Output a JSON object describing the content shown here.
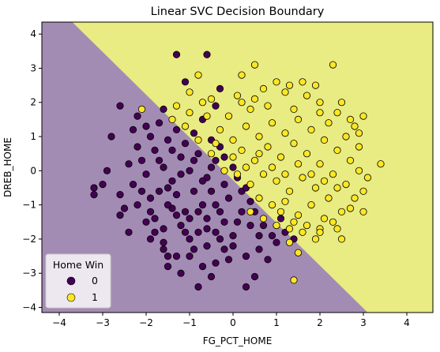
{
  "chart_data": {
    "type": "scatter",
    "title": "Linear SVC Decision Boundary",
    "xlabel": "FG_PCT_HOME",
    "ylabel": "DREB_HOME",
    "xlim": [
      -4.4,
      4.6
    ],
    "ylim": [
      -4.15,
      4.35
    ],
    "xticks": [
      -4,
      -3,
      -2,
      -1,
      0,
      1,
      2,
      3,
      4
    ],
    "yticks": [
      -4,
      -3,
      -2,
      -1,
      0,
      1,
      2,
      3,
      4
    ],
    "grid": false,
    "legend": {
      "title": "Home Win",
      "placement": "lower-left",
      "entries": [
        {
          "label": "0",
          "color": "#440154"
        },
        {
          "label": "1",
          "color": "#fde725"
        }
      ]
    },
    "decision_boundary": {
      "description_line": [
        [
          -3.7,
          4.35
        ],
        [
          3.1,
          -4.15
        ]
      ],
      "region_0_color": "#a38cb3",
      "region_1_color": "#e8ec82"
    },
    "series": [
      {
        "name": "0",
        "color": "#440154",
        "points": [
          [
            -1.3,
            3.4
          ],
          [
            -0.6,
            3.4
          ],
          [
            -1.1,
            2.6
          ],
          [
            -0.4,
            1.9
          ],
          [
            -0.3,
            2.4
          ],
          [
            -1.6,
            1.8
          ],
          [
            -2.2,
            1.6
          ],
          [
            -2.6,
            1.9
          ],
          [
            -2.0,
            1.3
          ],
          [
            -2.8,
            1.0
          ],
          [
            -2.9,
            0.0
          ],
          [
            -3.0,
            -0.4
          ],
          [
            -3.2,
            -0.5
          ],
          [
            -3.2,
            -0.7
          ],
          [
            -2.6,
            -0.7
          ],
          [
            -2.5,
            -1.1
          ],
          [
            -2.6,
            -1.3
          ],
          [
            -2.4,
            -1.8
          ],
          [
            -1.9,
            -2.0
          ],
          [
            -1.6,
            -2.3
          ],
          [
            -1.5,
            -2.5
          ],
          [
            -1.3,
            -2.5
          ],
          [
            -1.5,
            -2.8
          ],
          [
            -1.2,
            -3.0
          ],
          [
            -1.0,
            -2.5
          ],
          [
            -0.7,
            -2.8
          ],
          [
            -0.5,
            -3.1
          ],
          [
            -0.8,
            -3.4
          ],
          [
            -0.4,
            -2.7
          ],
          [
            -0.2,
            -2.3
          ],
          [
            0.3,
            -2.5
          ],
          [
            0.5,
            -3.1
          ],
          [
            0.3,
            -3.4
          ],
          [
            0.8,
            -2.6
          ],
          [
            1.0,
            -2.1
          ],
          [
            1.4,
            -2.0
          ],
          [
            1.1,
            -1.4
          ],
          [
            -2.3,
            -0.4
          ],
          [
            -1.9,
            -0.8
          ],
          [
            -1.8,
            -1.4
          ],
          [
            -1.6,
            -1.7
          ],
          [
            -1.4,
            -1.1
          ],
          [
            -1.2,
            -1.6
          ],
          [
            -1.0,
            -2.0
          ],
          [
            -0.8,
            -1.2
          ],
          [
            -0.6,
            -1.7
          ],
          [
            -0.4,
            -1.0
          ],
          [
            -0.2,
            -1.5
          ],
          [
            0.0,
            -1.9
          ],
          [
            0.2,
            -1.2
          ],
          [
            0.4,
            -1.6
          ],
          [
            0.6,
            -1.9
          ],
          [
            -2.1,
            0.3
          ],
          [
            -1.8,
            0.6
          ],
          [
            -1.6,
            0.1
          ],
          [
            -1.4,
            -0.3
          ],
          [
            -1.2,
            0.4
          ],
          [
            -1.0,
            0.0
          ],
          [
            -0.8,
            0.5
          ],
          [
            -0.6,
            -0.2
          ],
          [
            -0.4,
            0.3
          ],
          [
            -0.2,
            -0.4
          ],
          [
            0.0,
            0.1
          ],
          [
            0.2,
            -0.6
          ],
          [
            0.4,
            -0.9
          ],
          [
            -2.0,
            -0.1
          ],
          [
            -1.7,
            -0.6
          ],
          [
            -1.5,
            -1.0
          ],
          [
            -1.3,
            -0.7
          ],
          [
            -1.1,
            -1.2
          ],
          [
            -0.9,
            -0.6
          ],
          [
            -0.7,
            -1.0
          ],
          [
            -0.5,
            -0.6
          ],
          [
            -0.3,
            -1.2
          ],
          [
            -0.1,
            -0.8
          ],
          [
            0.1,
            -1.5
          ],
          [
            0.3,
            -0.5
          ],
          [
            0.5,
            -1.2
          ],
          [
            0.7,
            -1.6
          ],
          [
            0.9,
            -1.9
          ],
          [
            -1.9,
            1.0
          ],
          [
            -1.7,
            1.4
          ],
          [
            -1.5,
            0.9
          ],
          [
            -1.3,
            1.2
          ],
          [
            -1.1,
            0.8
          ],
          [
            -0.9,
            1.1
          ],
          [
            -0.7,
            1.5
          ],
          [
            -0.5,
            0.9
          ],
          [
            -0.3,
            0.7
          ],
          [
            -2.2,
            0.7
          ],
          [
            -2.4,
            0.2
          ],
          [
            -2.2,
            -1.0
          ],
          [
            -2.0,
            -1.5
          ],
          [
            -1.8,
            -1.8
          ],
          [
            -1.6,
            -2.1
          ],
          [
            -1.0,
            -1.4
          ],
          [
            -0.8,
            -1.8
          ],
          [
            -0.6,
            -2.2
          ],
          [
            -0.3,
            -2.0
          ],
          [
            0.0,
            -2.2
          ],
          [
            -0.1,
            -2.6
          ],
          [
            0.6,
            -2.3
          ],
          [
            1.2,
            -1.8
          ],
          [
            -1.4,
            0.6
          ],
          [
            -1.2,
            -0.1
          ],
          [
            -0.9,
            0.3
          ],
          [
            -0.7,
            -0.3
          ],
          [
            -0.5,
            0.1
          ],
          [
            -0.2,
            0.4
          ],
          [
            0.1,
            -0.2
          ],
          [
            -2.3,
            1.2
          ],
          [
            -2.1,
            -0.6
          ],
          [
            -1.9,
            -1.2
          ],
          [
            -1.7,
            0.3
          ],
          [
            -1.5,
            -0.5
          ],
          [
            -1.3,
            -1.3
          ],
          [
            -1.1,
            -1.8
          ],
          [
            -0.9,
            -2.3
          ],
          [
            -0.6,
            -1.4
          ],
          [
            -0.4,
            -1.8
          ]
        ]
      },
      {
        "name": "1",
        "color": "#fde725",
        "points": [
          [
            0.5,
            3.1
          ],
          [
            2.3,
            3.1
          ],
          [
            -0.8,
            2.8
          ],
          [
            0.2,
            2.8
          ],
          [
            1.6,
            2.6
          ],
          [
            1.9,
            2.5
          ],
          [
            -0.5,
            2.1
          ],
          [
            0.7,
            2.4
          ],
          [
            1.2,
            2.3
          ],
          [
            2.5,
            2.0
          ],
          [
            3.0,
            1.6
          ],
          [
            2.8,
            1.3
          ],
          [
            3.4,
            0.2
          ],
          [
            3.1,
            -0.2
          ],
          [
            3.0,
            -0.6
          ],
          [
            2.7,
            -1.1
          ],
          [
            3.0,
            -1.2
          ],
          [
            2.0,
            -1.7
          ],
          [
            2.4,
            -1.7
          ],
          [
            2.5,
            -2.0
          ],
          [
            1.3,
            -2.1
          ],
          [
            1.5,
            -2.4
          ],
          [
            1.4,
            -3.2
          ],
          [
            -2.1,
            1.8
          ],
          [
            -1.3,
            1.9
          ],
          [
            -1.0,
            2.3
          ],
          [
            0.1,
            2.2
          ],
          [
            0.4,
            1.8
          ],
          [
            0.8,
            1.9
          ],
          [
            1.4,
            1.8
          ],
          [
            2.0,
            1.7
          ],
          [
            2.2,
            1.4
          ],
          [
            2.6,
            1.0
          ],
          [
            2.9,
            0.7
          ],
          [
            0.3,
            1.3
          ],
          [
            0.6,
            1.0
          ],
          [
            0.9,
            1.4
          ],
          [
            1.2,
            1.1
          ],
          [
            1.5,
            1.5
          ],
          [
            1.8,
            1.2
          ],
          [
            2.1,
            0.9
          ],
          [
            2.4,
            0.6
          ],
          [
            2.7,
            0.3
          ],
          [
            2.9,
            0.0
          ],
          [
            0.2,
            0.6
          ],
          [
            0.5,
            0.3
          ],
          [
            0.8,
            0.7
          ],
          [
            1.1,
            0.4
          ],
          [
            1.4,
            0.8
          ],
          [
            1.7,
            0.5
          ],
          [
            2.0,
            0.2
          ],
          [
            2.3,
            -0.1
          ],
          [
            2.6,
            -0.4
          ],
          [
            2.8,
            -0.8
          ],
          [
            0.1,
            -0.1
          ],
          [
            0.4,
            -0.4
          ],
          [
            0.7,
            -0.1
          ],
          [
            1.0,
            -0.3
          ],
          [
            1.3,
            -0.6
          ],
          [
            1.6,
            -0.2
          ],
          [
            1.9,
            -0.5
          ],
          [
            2.2,
            -0.8
          ],
          [
            2.5,
            -1.2
          ],
          [
            0.6,
            -0.8
          ],
          [
            0.9,
            -1.0
          ],
          [
            1.2,
            -0.9
          ],
          [
            1.5,
            -1.3
          ],
          [
            1.8,
            -1.0
          ],
          [
            2.1,
            -1.4
          ],
          [
            1.0,
            -1.6
          ],
          [
            1.3,
            -1.7
          ],
          [
            1.6,
            -1.8
          ],
          [
            1.9,
            -2.0
          ],
          [
            -0.6,
            1.6
          ],
          [
            -0.3,
            1.2
          ],
          [
            0.0,
            0.9
          ],
          [
            -0.1,
            1.6
          ],
          [
            0.2,
            2.0
          ],
          [
            -1.4,
            1.5
          ],
          [
            -1.1,
            1.3
          ],
          [
            -0.8,
            0.9
          ],
          [
            -0.5,
            0.5
          ],
          [
            -1.0,
            1.7
          ],
          [
            -0.7,
            2.0
          ],
          [
            0.5,
            2.1
          ],
          [
            1.0,
            2.6
          ],
          [
            1.3,
            2.5
          ],
          [
            1.7,
            2.2
          ],
          [
            2.0,
            2.0
          ],
          [
            2.4,
            1.7
          ],
          [
            2.7,
            1.5
          ],
          [
            2.9,
            1.1
          ],
          [
            0.3,
            0.1
          ],
          [
            0.6,
            0.5
          ],
          [
            0.9,
            0.1
          ],
          [
            1.2,
            -0.1
          ],
          [
            1.5,
            0.2
          ],
          [
            1.8,
            -0.1
          ],
          [
            2.1,
            -0.3
          ],
          [
            2.4,
            -0.5
          ],
          [
            0.4,
            -1.2
          ],
          [
            0.7,
            -1.4
          ],
          [
            1.1,
            -1.2
          ],
          [
            1.4,
            -1.5
          ],
          [
            1.7,
            -1.6
          ],
          [
            2.0,
            -1.8
          ],
          [
            2.3,
            -1.5
          ],
          [
            -0.2,
            0.0
          ],
          [
            0.0,
            0.4
          ],
          [
            -0.4,
            0.8
          ]
        ]
      }
    ]
  }
}
